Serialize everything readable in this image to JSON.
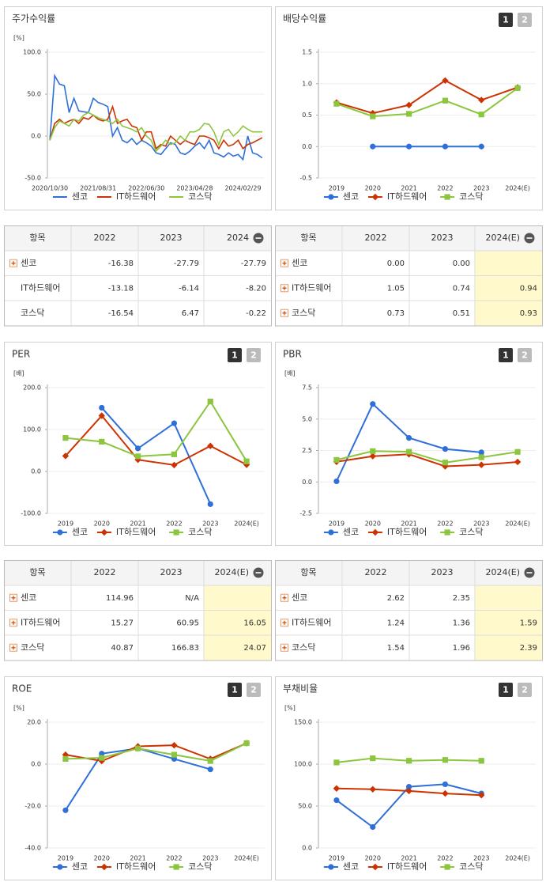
{
  "chart_data": [
    {
      "type": "line",
      "title": "주가수익률",
      "unit": "[%]",
      "categories": [
        "2020/10/30",
        null,
        null,
        null,
        null,
        null,
        null,
        null,
        null,
        null,
        "2021/08/31",
        null,
        null,
        null,
        null,
        null,
        null,
        null,
        null,
        null,
        "2022/06/30",
        null,
        null,
        null,
        null,
        null,
        null,
        null,
        null,
        null,
        "2023/04/28",
        null,
        null,
        null,
        null,
        null,
        null,
        null,
        null,
        null,
        "2024/02/29",
        null,
        null,
        null,
        null
      ],
      "series": [
        {
          "name": "센코",
          "color": "#2e6fd8",
          "values": [
            -5,
            72,
            62,
            60,
            28,
            45,
            30,
            29,
            28,
            45,
            40,
            38,
            35,
            0,
            10,
            -5,
            -8,
            -3,
            -10,
            -5,
            -8,
            -12,
            -20,
            -22,
            -15,
            -8,
            -10,
            -20,
            -22,
            -18,
            -12,
            -8,
            -15,
            -5,
            -20,
            -22,
            -25,
            -20,
            -24,
            -22,
            -28,
            0,
            -20,
            -22,
            -26
          ]
        },
        {
          "name": "IT하드웨어",
          "color": "#cc3300",
          "values": [
            -5,
            15,
            20,
            15,
            18,
            20,
            15,
            22,
            20,
            25,
            20,
            18,
            20,
            35,
            15,
            18,
            20,
            12,
            10,
            -5,
            5,
            5,
            -15,
            -10,
            -12,
            0,
            -5,
            -10,
            -5,
            -8,
            -10,
            0,
            0,
            -2,
            -5,
            -15,
            -5,
            -12,
            -10,
            -5,
            -15,
            -10,
            -8,
            -5,
            -2
          ]
        },
        {
          "name": "코스닥",
          "color": "#8cc63f",
          "values": [
            -5,
            10,
            18,
            15,
            12,
            20,
            18,
            25,
            28,
            25,
            22,
            20,
            18,
            15,
            20,
            12,
            10,
            8,
            5,
            10,
            0,
            -5,
            -18,
            -12,
            -5,
            -10,
            -8,
            0,
            -5,
            5,
            5,
            8,
            15,
            14,
            5,
            -10,
            5,
            8,
            0,
            5,
            12,
            8,
            5,
            5,
            5
          ]
        }
      ],
      "ylim": [
        -50,
        100
      ],
      "yticks": [
        {
          "value": -50,
          "label": "-50.0"
        },
        {
          "value": 0,
          "label": "0.0"
        },
        {
          "value": 50,
          "label": "50.0"
        },
        {
          "value": 100,
          "label": "100.0"
        }
      ]
    },
    {
      "type": "line",
      "title": "배당수익률",
      "tabs": [
        "1",
        "2"
      ],
      "categories": [
        "2019",
        "2020",
        "2021",
        "2022",
        "2023",
        "2024(E)"
      ],
      "series": [
        {
          "name": "센코",
          "color": "#2e6fd8",
          "marker": "circle",
          "values": [
            null,
            0,
            0,
            0,
            0,
            null
          ]
        },
        {
          "name": "IT하드웨어",
          "color": "#cc3300",
          "marker": "diamond",
          "values": [
            0.7,
            0.53,
            0.66,
            1.05,
            0.74,
            0.94
          ]
        },
        {
          "name": "코스닥",
          "color": "#8cc63f",
          "marker": "square",
          "values": [
            0.68,
            0.48,
            0.52,
            0.73,
            0.51,
            0.93
          ]
        }
      ],
      "ylim": [
        -0.5,
        1.5
      ],
      "yticks": [
        -0.5,
        {
          "value": 0,
          "label": "0.0"
        },
        0.5,
        {
          "value": 1,
          "label": "1.0"
        },
        1.5
      ]
    },
    {
      "type": "line",
      "title": "PER",
      "tabs": [
        "1",
        "2"
      ],
      "unit": "[배]",
      "categories": [
        "2019",
        "2020",
        "2021",
        "2022",
        "2023",
        "2024(E)"
      ],
      "series": [
        {
          "name": "센코",
          "color": "#2e6fd8",
          "marker": "circle",
          "values": [
            null,
            152,
            55,
            114.96,
            -78,
            null
          ]
        },
        {
          "name": "IT하드웨어",
          "color": "#cc3300",
          "marker": "diamond",
          "values": [
            37,
            133,
            28,
            15.27,
            60.95,
            16.05
          ]
        },
        {
          "name": "코스닥",
          "color": "#8cc63f",
          "marker": "square",
          "values": [
            80,
            71,
            36,
            40.87,
            166.83,
            24.07
          ]
        }
      ],
      "ylim": [
        -100,
        200
      ],
      "yticks": [
        {
          "value": -100,
          "label": "-100.0"
        },
        {
          "value": 0,
          "label": "0.0"
        },
        {
          "value": 100,
          "label": "100.0"
        },
        {
          "value": 200,
          "label": "200.0"
        }
      ]
    },
    {
      "type": "line",
      "title": "PBR",
      "tabs": [
        "1",
        "2"
      ],
      "unit": "[배]",
      "categories": [
        "2019",
        "2020",
        "2021",
        "2022",
        "2023",
        "2024(E)"
      ],
      "series": [
        {
          "name": "센코",
          "color": "#2e6fd8",
          "marker": "circle",
          "values": [
            0.05,
            6.2,
            3.5,
            2.62,
            2.35,
            null
          ]
        },
        {
          "name": "IT하드웨어",
          "color": "#cc3300",
          "marker": "diamond",
          "values": [
            1.6,
            2.05,
            2.2,
            1.24,
            1.36,
            1.59
          ]
        },
        {
          "name": "코스닥",
          "color": "#8cc63f",
          "marker": "square",
          "values": [
            1.75,
            2.45,
            2.4,
            1.54,
            1.96,
            2.39
          ]
        }
      ],
      "ylim": [
        -2.5,
        7.5
      ],
      "yticks": [
        -2.5,
        {
          "value": 0,
          "label": "0.0"
        },
        2.5,
        {
          "value": 5,
          "label": "5.0"
        },
        7.5
      ]
    },
    {
      "type": "line",
      "title": "ROE",
      "tabs": [
        "1",
        "2"
      ],
      "unit": "[%]",
      "categories": [
        "2019",
        "2020",
        "2021",
        "2022",
        "2023",
        "2024(E)"
      ],
      "series": [
        {
          "name": "센코",
          "color": "#2e6fd8",
          "marker": "circle",
          "values": [
            -22,
            5,
            7.5,
            2.5,
            -2.5,
            null
          ]
        },
        {
          "name": "IT하드웨어",
          "color": "#cc3300",
          "marker": "diamond",
          "values": [
            4.5,
            1.5,
            8.5,
            9,
            2.5,
            10
          ]
        },
        {
          "name": "코스닥",
          "color": "#8cc63f",
          "marker": "square",
          "values": [
            2.5,
            3,
            7.5,
            4.5,
            1.5,
            10
          ]
        }
      ],
      "ylim": [
        -40,
        20
      ],
      "yticks": [
        {
          "value": -40,
          "label": "-40.0"
        },
        {
          "value": -20,
          "label": "-20.0"
        },
        {
          "value": 0,
          "label": "0.0"
        },
        {
          "value": 20,
          "label": "20.0"
        }
      ]
    },
    {
      "type": "line",
      "title": "부채비율",
      "tabs": [
        "1",
        "2"
      ],
      "unit": "[%]",
      "categories": [
        "2019",
        "2020",
        "2021",
        "2022",
        "2023",
        "2024(E)"
      ],
      "series": [
        {
          "name": "센코",
          "color": "#2e6fd8",
          "marker": "circle",
          "values": [
            57,
            25,
            73,
            76,
            65,
            null
          ]
        },
        {
          "name": "IT하드웨어",
          "color": "#cc3300",
          "marker": "diamond",
          "values": [
            71,
            70,
            68,
            65,
            63,
            null
          ]
        },
        {
          "name": "코스닥",
          "color": "#8cc63f",
          "marker": "square",
          "values": [
            102,
            107,
            104,
            105,
            104,
            null
          ]
        }
      ],
      "ylim": [
        0,
        150
      ],
      "yticks": [
        {
          "value": 0,
          "label": "0.0"
        },
        {
          "value": 50,
          "label": "50.0"
        },
        {
          "value": 100,
          "label": "100.0"
        },
        {
          "value": 150,
          "label": "150.0"
        }
      ]
    }
  ],
  "tables": [
    {
      "header": [
        "항목",
        "2022",
        "2023",
        "2024"
      ],
      "highlight_last": false,
      "rows": [
        {
          "name": "센코",
          "expandable": true,
          "cells": [
            "-16.38",
            "-27.79",
            "-27.79"
          ]
        },
        {
          "name": "IT하드웨어",
          "expandable": false,
          "cells": [
            "-13.18",
            "-6.14",
            "-8.20"
          ]
        },
        {
          "name": "코스닥",
          "expandable": false,
          "cells": [
            "-16.54",
            "6.47",
            "-0.22"
          ]
        }
      ]
    },
    {
      "header": [
        "항목",
        "2022",
        "2023",
        "2024(E)"
      ],
      "highlight_last": true,
      "rows": [
        {
          "name": "센코",
          "expandable": true,
          "cells": [
            "0.00",
            "0.00",
            null
          ]
        },
        {
          "name": "IT하드웨어",
          "expandable": true,
          "cells": [
            "1.05",
            "0.74",
            "0.94"
          ]
        },
        {
          "name": "코스닥",
          "expandable": true,
          "cells": [
            "0.73",
            "0.51",
            "0.93"
          ]
        }
      ]
    },
    {
      "header": [
        "항목",
        "2022",
        "2023",
        "2024(E)"
      ],
      "highlight_last": true,
      "rows": [
        {
          "name": "센코",
          "expandable": true,
          "cells": [
            "114.96",
            "N/A",
            null
          ]
        },
        {
          "name": "IT하드웨어",
          "expandable": true,
          "cells": [
            "15.27",
            "60.95",
            "16.05"
          ]
        },
        {
          "name": "코스닥",
          "expandable": true,
          "cells": [
            "40.87",
            "166.83",
            "24.07"
          ]
        }
      ]
    },
    {
      "header": [
        "항목",
        "2022",
        "2023",
        "2024(E)"
      ],
      "highlight_last": true,
      "rows": [
        {
          "name": "센코",
          "expandable": true,
          "cells": [
            "2.62",
            "2.35",
            null
          ]
        },
        {
          "name": "IT하드웨어",
          "expandable": true,
          "cells": [
            "1.24",
            "1.36",
            "1.59"
          ]
        },
        {
          "name": "코스닥",
          "expandable": true,
          "cells": [
            "1.54",
            "1.96",
            "2.39"
          ]
        }
      ]
    }
  ]
}
